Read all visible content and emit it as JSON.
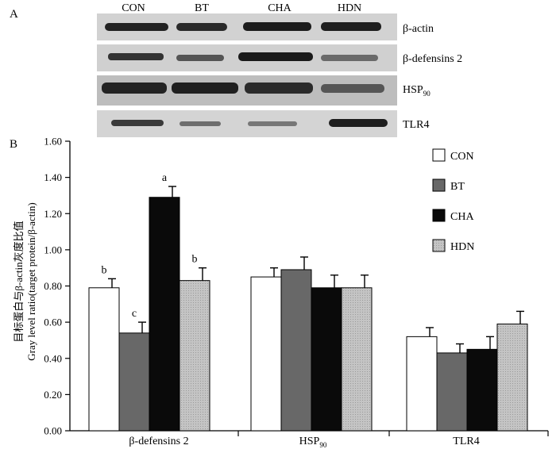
{
  "panel_a": {
    "label": "A",
    "lanes": [
      "CON",
      "BT",
      "CHA",
      "HDN"
    ],
    "blots": [
      {
        "name": "β-actin",
        "main": "β-actin",
        "sub": ""
      },
      {
        "name": "β-defensins 2",
        "main": "β-defensins 2",
        "sub": ""
      },
      {
        "name": "HSP90",
        "main": "HSP",
        "sub": "90"
      },
      {
        "name": "TLR4",
        "main": "TLR4",
        "sub": ""
      }
    ]
  },
  "panel_b": {
    "label": "B"
  },
  "chart_data": {
    "type": "bar",
    "ylabel_cn": "目标蛋白与β-actin灰度比值",
    "ylabel": "Gray level ratio(target protein/β-actin)",
    "ylim": [
      0,
      1.6
    ],
    "yticks": [
      "0.00",
      "0.20",
      "0.40",
      "0.60",
      "0.80",
      "1.00",
      "1.20",
      "1.40",
      "1.60"
    ],
    "categories": [
      {
        "main": "β-defensins 2",
        "sub": ""
      },
      {
        "main": "HSP",
        "sub": "90"
      },
      {
        "main": "TLR4",
        "sub": ""
      }
    ],
    "series": [
      {
        "name": "CON",
        "color": "#ffffff",
        "values": [
          0.79,
          0.85,
          0.52
        ],
        "errors": [
          0.05,
          0.05,
          0.05
        ],
        "labels": [
          "b",
          "",
          ""
        ]
      },
      {
        "name": "BT",
        "color": "#686868",
        "values": [
          0.54,
          0.89,
          0.43
        ],
        "errors": [
          0.06,
          0.07,
          0.05
        ],
        "labels": [
          "c",
          "",
          ""
        ]
      },
      {
        "name": "CHA",
        "color": "#0a0a0a",
        "values": [
          1.29,
          0.79,
          0.45
        ],
        "errors": [
          0.06,
          0.07,
          0.07
        ],
        "labels": [
          "a",
          "",
          ""
        ]
      },
      {
        "name": "HDN",
        "color": "#bdbdbd",
        "values": [
          0.83,
          0.79,
          0.59
        ],
        "errors": [
          0.07,
          0.07,
          0.07
        ],
        "labels": [
          "b",
          "",
          ""
        ]
      }
    ]
  }
}
